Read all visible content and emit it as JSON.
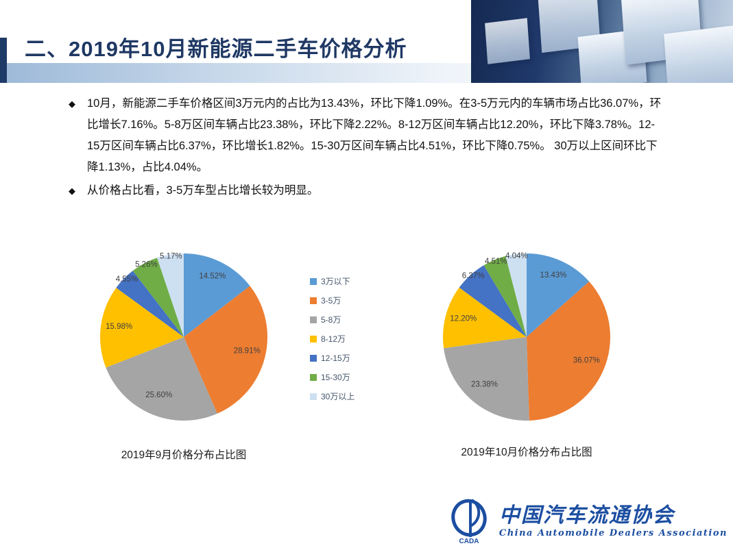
{
  "slide": {
    "title": "二、2019年10月新能源二手车价格分析",
    "bullet_marker": "◆",
    "bullets": [
      "10月，新能源二手车价格区间3万元内的占比为13.43%，环比下降1.09%。在3-5万元内的车辆市场占比36.07%，环比增长7.16%。5-8万区间车辆占比23.38%，环比下降2.22%。8-12万区间车辆占比12.20%，环比下降3.78%。12-15万区间车辆占比6.37%，环比增长1.82%。15-30万区间车辆占比4.51%，环比下降0.75%。 30万以上区间环比下降1.13%，占比4.04%。",
      "从价格占比看，3-5万车型占比增长较为明显。"
    ]
  },
  "chart_data": [
    {
      "type": "pie",
      "title": "2019年9月价格分布占比图",
      "categories": [
        "3万以下",
        "3-5万",
        "5-8万",
        "8-12万",
        "12-15万",
        "15-30万",
        "30万以上"
      ],
      "values": [
        14.52,
        28.91,
        25.6,
        15.98,
        4.55,
        5.26,
        5.17
      ],
      "labels": [
        "14.52%",
        "28.91%",
        "25.60%",
        "15.98%",
        "4.55%",
        "5.26%",
        "5.17%"
      ],
      "colors": [
        "#5B9BD5",
        "#ED7D31",
        "#A5A5A5",
        "#FFC000",
        "#4472C4",
        "#70AD47",
        "#CDE0F2"
      ],
      "legend_position": "between-charts",
      "start_angle": 0,
      "direction": "clockwise"
    },
    {
      "type": "pie",
      "title": "2019年10月价格分布占比图",
      "categories": [
        "3万以下",
        "3-5万",
        "5-8万",
        "8-12万",
        "12-15万",
        "15-30万",
        "30万以上"
      ],
      "values": [
        13.43,
        36.07,
        23.38,
        12.2,
        6.37,
        4.51,
        4.04
      ],
      "labels": [
        "13.43%",
        "36.07%",
        "23.38%",
        "12.20%",
        "6.37%",
        "4.51%",
        "4.04%"
      ],
      "colors": [
        "#5B9BD5",
        "#ED7D31",
        "#A5A5A5",
        "#FFC000",
        "#4472C4",
        "#70AD47",
        "#CDE0F2"
      ],
      "legend_position": "between-charts",
      "start_angle": 0,
      "direction": "clockwise"
    }
  ],
  "legend": {
    "entries": [
      {
        "label": "3万以下",
        "color": "#5B9BD5"
      },
      {
        "label": "3-5万",
        "color": "#ED7D31"
      },
      {
        "label": "5-8万",
        "color": "#A5A5A5"
      },
      {
        "label": "8-12万",
        "color": "#FFC000"
      },
      {
        "label": "12-15万",
        "color": "#4472C4"
      },
      {
        "label": "15-30万",
        "color": "#70AD47"
      },
      {
        "label": "30万以上",
        "color": "#CDE0F2"
      }
    ]
  },
  "footer": {
    "org_cn": "中国汽车流通协会",
    "org_en": "China  Automobile  Dealers  Association",
    "logo_abbr": "CADA",
    "brand_color": "#1c4ea1"
  }
}
